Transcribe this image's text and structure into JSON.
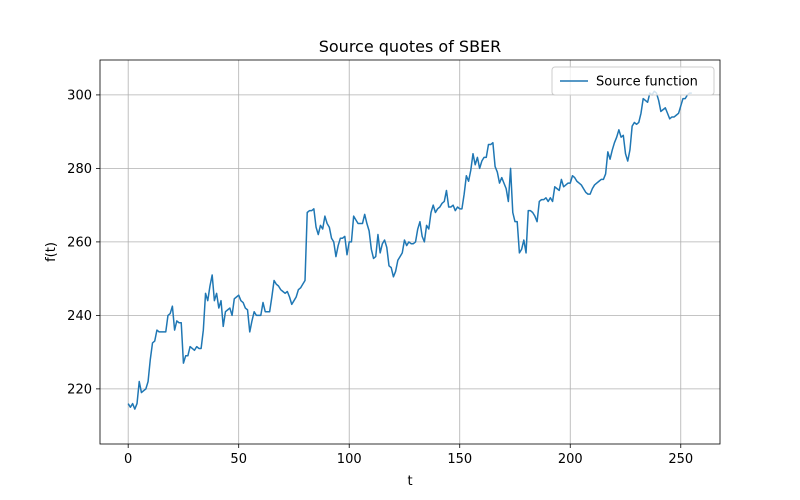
{
  "chart_data": {
    "type": "line",
    "title": "Source quotes of SBER",
    "xlabel": "t",
    "ylabel": "f(t)",
    "x": [
      0,
      1,
      2,
      3,
      4,
      5,
      6,
      7,
      8,
      9,
      10,
      11,
      12,
      13,
      14,
      15,
      16,
      17,
      18,
      19,
      20,
      21,
      22,
      23,
      24,
      25,
      26,
      27,
      28,
      29,
      30,
      31,
      32,
      33,
      34,
      35,
      36,
      37,
      38,
      39,
      40,
      41,
      42,
      43,
      44,
      45,
      46,
      47,
      48,
      49,
      50,
      51,
      52,
      53,
      54,
      55,
      56,
      57,
      58,
      59,
      60,
      61,
      62,
      63,
      64,
      65,
      66,
      67,
      68,
      69,
      70,
      71,
      72,
      73,
      74,
      75,
      76,
      77,
      78,
      79,
      80,
      81,
      82,
      83,
      84,
      85,
      86,
      87,
      88,
      89,
      90,
      91,
      92,
      93,
      94,
      95,
      96,
      97,
      98,
      99,
      100,
      101,
      102,
      103,
      104,
      105,
      106,
      107,
      108,
      109,
      110,
      111,
      112,
      113,
      114,
      115,
      116,
      117,
      118,
      119,
      120,
      121,
      122,
      123,
      124,
      125,
      126,
      127,
      128,
      129,
      130,
      131,
      132,
      133,
      134,
      135,
      136,
      137,
      138,
      139,
      140,
      141,
      142,
      143,
      144,
      145,
      146,
      147,
      148,
      149,
      150,
      151,
      152,
      153,
      154,
      155,
      156,
      157,
      158,
      159,
      160,
      161,
      162,
      163,
      164,
      165,
      166,
      167,
      168,
      169,
      170,
      171,
      172,
      173,
      174,
      175,
      176,
      177,
      178,
      179,
      180,
      181,
      182,
      183,
      184,
      185,
      186,
      187,
      188,
      189,
      190,
      191,
      192,
      193,
      194,
      195,
      196,
      197,
      198,
      199,
      200,
      201,
      202,
      203,
      204,
      205,
      206,
      207,
      208,
      209,
      210,
      211,
      212,
      213,
      214,
      215,
      216,
      217,
      218,
      219,
      220,
      221,
      222,
      223,
      224,
      225,
      226,
      227,
      228,
      229,
      230,
      231,
      232,
      233,
      234,
      235,
      236,
      237,
      238,
      239,
      240,
      241,
      242,
      243,
      244,
      245,
      246,
      247,
      248,
      249,
      250,
      251,
      252,
      253,
      254,
      255
    ],
    "series": [
      {
        "name": "Source function",
        "color": "#1f77b4",
        "values": [
          216,
          215,
          216,
          214.5,
          216,
          222,
          219,
          219.5,
          220,
          222,
          228,
          232.5,
          233,
          236,
          235.5,
          235.5,
          235.5,
          235.5,
          240,
          240.5,
          242.5,
          236,
          238.5,
          238,
          238,
          227,
          229,
          229,
          231.5,
          231,
          230.5,
          231.5,
          231,
          231,
          236,
          246,
          244,
          248,
          251,
          244,
          246,
          242,
          244,
          237,
          241,
          241.5,
          242,
          240,
          244.5,
          245,
          245.5,
          244,
          243.5,
          242,
          241.5,
          235.5,
          238.5,
          241,
          240,
          240,
          240,
          243.5,
          241,
          241,
          241,
          245,
          249.5,
          248.5,
          248,
          247,
          246.5,
          246,
          246.5,
          245,
          243,
          244,
          245,
          247,
          247.5,
          248.5,
          249.5,
          268,
          268.5,
          268.5,
          269,
          264,
          262,
          264.5,
          263.5,
          267,
          265,
          264,
          261,
          260,
          256,
          259,
          261,
          261,
          261.5,
          256.5,
          260,
          260,
          267,
          266,
          265,
          265,
          265,
          267.5,
          265,
          263,
          258,
          255.5,
          256,
          262,
          257,
          259.5,
          260.5,
          258.5,
          253.5,
          253,
          250.5,
          252,
          255,
          256,
          257,
          260.5,
          259,
          260,
          259.5,
          259.5,
          260,
          263.5,
          265.5,
          261.5,
          260,
          264.5,
          263.5,
          268,
          270,
          268,
          269,
          269.5,
          270.5,
          271,
          274,
          269.5,
          269.5,
          270,
          268.5,
          269.5,
          269,
          269,
          273,
          278,
          276.5,
          279.5,
          284,
          281,
          283,
          280,
          282,
          283,
          283,
          286.5,
          286.5,
          287,
          280.5,
          279,
          276,
          277.5,
          276,
          274.5,
          271,
          280,
          268,
          265.5,
          265.5,
          257,
          258,
          260.5,
          257,
          268.5,
          268.5,
          268,
          267,
          265.5,
          271,
          271.5,
          271.5,
          272,
          271,
          272,
          271,
          275,
          274.5,
          274,
          277,
          275,
          275.5,
          276,
          276,
          278,
          277.5,
          276.5,
          276,
          275.5,
          274.5,
          273.5,
          273,
          273,
          274.5,
          275.5,
          276,
          276.5,
          277,
          277,
          278.5,
          284.5,
          282.5,
          285,
          287,
          288.5,
          290.5,
          288.5,
          289,
          284,
          282,
          285,
          291.5,
          292.5,
          292,
          292.5,
          295,
          299,
          298.5,
          298,
          300.5,
          300,
          301,
          300.5,
          298.5,
          295.5,
          296,
          296.5,
          295,
          293.5,
          294,
          294,
          294.5,
          295,
          297,
          299,
          299,
          300,
          300.5,
          300.5
        ]
      }
    ],
    "xlim": [
      -12.75,
      267.75
    ],
    "xticks": [
      0,
      50,
      100,
      150,
      200,
      250
    ],
    "ylim": [
      205,
      309.5
    ],
    "yticks": [
      220,
      240,
      260,
      280,
      300
    ],
    "grid": true,
    "legend": "upper right"
  }
}
